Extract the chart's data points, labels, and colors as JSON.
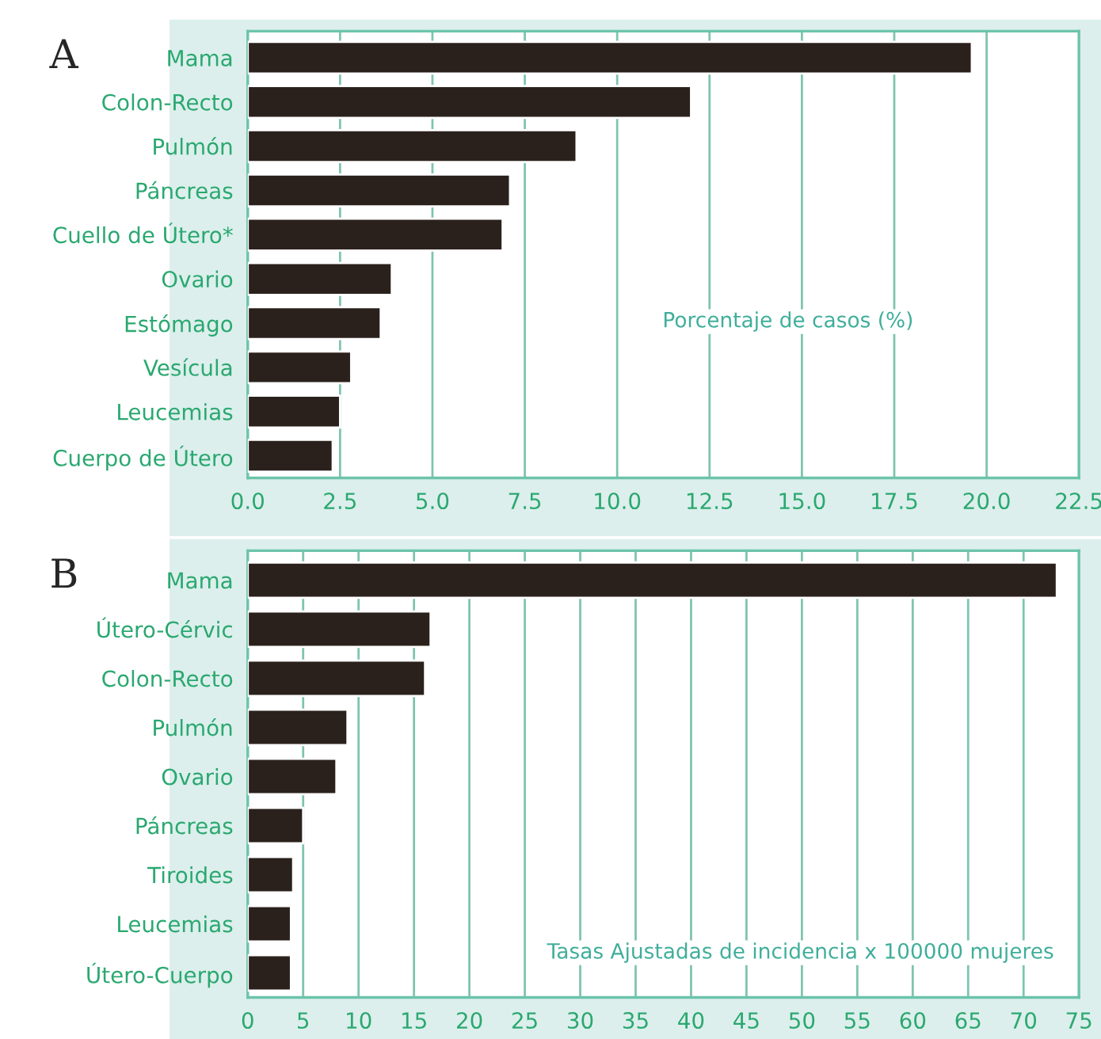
{
  "chart_data": [
    {
      "type": "bar",
      "orientation": "horizontal",
      "title": "A",
      "categories": [
        "Mama",
        "Colon-Recto",
        "Pulmón",
        "Páncreas",
        "Cuello de Útero*",
        "Ovario",
        "Estómago",
        "Vesícula",
        "Leucemias",
        "Cuerpo de Útero"
      ],
      "values": [
        19.6,
        12.0,
        8.9,
        7.1,
        6.9,
        3.9,
        3.6,
        2.8,
        2.5,
        2.3
      ],
      "color": "#2b211c",
      "xlim": [
        0,
        22.5
      ],
      "xticks": [
        {
          "value": 0,
          "label": "0.0"
        },
        2.5,
        {
          "value": 5,
          "label": "5.0"
        },
        7.5,
        {
          "value": 10,
          "label": "10.0"
        },
        12.5,
        {
          "value": 15,
          "label": "15.0"
        },
        17.5,
        {
          "value": 20,
          "label": "20.0"
        },
        22.5
      ],
      "grid": "x",
      "annotations": [
        "Porcentaje de casos (%)"
      ]
    },
    {
      "type": "bar",
      "orientation": "horizontal",
      "title": "B",
      "categories": [
        "Mama",
        "Útero-Cérvic",
        "Colon-Recto",
        "Pulmón",
        "Ovario",
        "Páncreas",
        "Tiroides",
        "Leucemias",
        "Útero-Cuerpo"
      ],
      "values": [
        73,
        16.5,
        16.0,
        9.0,
        8.0,
        5.0,
        4.1,
        3.9,
        3.9
      ],
      "color": "#2b211c",
      "xlim": [
        0,
        75
      ],
      "xticks": [
        0,
        5,
        10,
        15,
        20,
        25,
        30,
        35,
        40,
        45,
        50,
        55,
        60,
        65,
        70,
        75
      ],
      "grid": "x",
      "annotations": [
        "Tasas Ajustadas de incidencia x 100000 mujeres"
      ]
    }
  ]
}
